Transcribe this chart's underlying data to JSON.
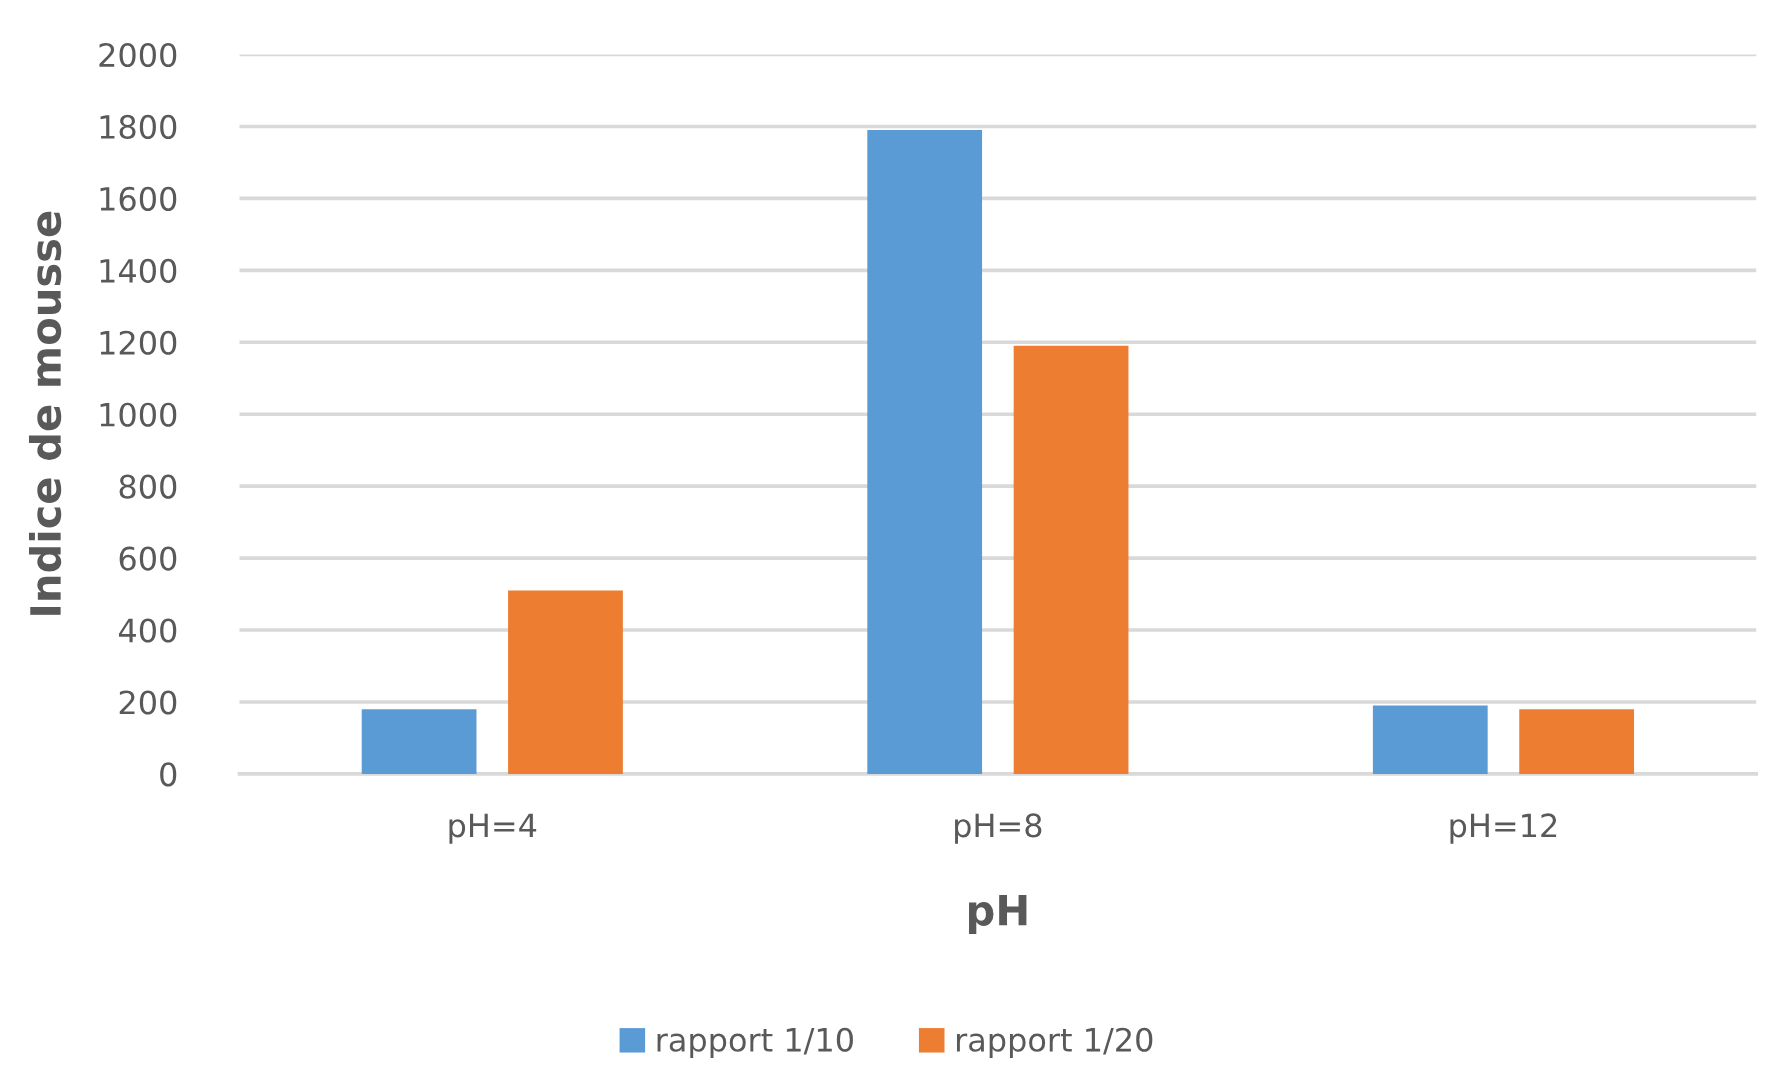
{
  "chart_data": {
    "type": "bar",
    "xlabel": "pH",
    "ylabel": "Indice de mousse",
    "categories": [
      "pH=4",
      "pH=8",
      "pH=12"
    ],
    "series": [
      {
        "name": "rapport 1/10",
        "color": "#5b9bd5",
        "values": [
          180,
          1790,
          190
        ]
      },
      {
        "name": "rapport 1/20",
        "color": "#ed7d31",
        "values": [
          510,
          1190,
          180
        ]
      }
    ],
    "ylim": [
      0,
      2000
    ],
    "yticks": [
      0,
      200,
      400,
      600,
      800,
      1000,
      1200,
      1400,
      1600,
      1800,
      2000
    ],
    "grid": "y",
    "legend": "bottom"
  }
}
